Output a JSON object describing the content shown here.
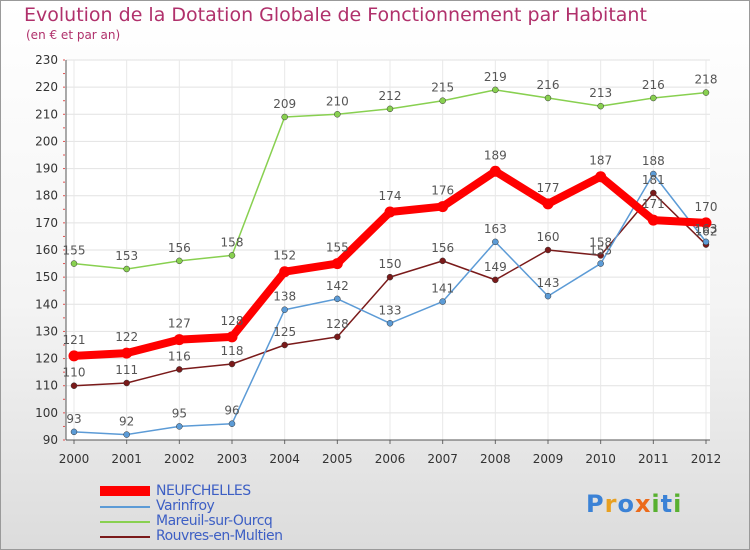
{
  "chart_data": {
    "type": "line",
    "title": "Evolution de la Dotation Globale de Fonctionnement par Habitant",
    "subtitle": "(en € et par an)",
    "xlabel": "",
    "ylabel": "",
    "x": [
      "2000",
      "2001",
      "2002",
      "2003",
      "2004",
      "2005",
      "2006",
      "2007",
      "2008",
      "2009",
      "2010",
      "2011",
      "2012"
    ],
    "ylim": [
      90,
      230
    ],
    "yticks": [
      "90",
      "100",
      "110",
      "120",
      "130",
      "140",
      "150",
      "160",
      "170",
      "180",
      "190",
      "200",
      "210",
      "220",
      "230"
    ],
    "grid": true,
    "legend_position": "bottom-left",
    "series": [
      {
        "name": "NEUFCHELLES",
        "color": "#ff0000",
        "values": [
          121,
          122,
          127,
          128,
          152,
          155,
          174,
          176,
          189,
          177,
          187,
          171,
          170
        ]
      },
      {
        "name": "Varinfroy",
        "color": "#5c9bd6",
        "values": [
          93,
          92,
          95,
          96,
          138,
          142,
          133,
          141,
          163,
          143,
          155,
          188,
          163
        ]
      },
      {
        "name": "Mareuil-sur-Ourcq",
        "color": "#88d050",
        "values": [
          155,
          153,
          156,
          158,
          209,
          210,
          212,
          215,
          219,
          216,
          213,
          216,
          218
        ]
      },
      {
        "name": "Rouvres-en-Multien",
        "color": "#7a1a1a",
        "values": [
          110,
          111,
          116,
          118,
          125,
          128,
          150,
          156,
          149,
          160,
          158,
          181,
          162
        ]
      }
    ]
  },
  "logo": {
    "text": "Proxiti",
    "letters": [
      {
        "char": "P",
        "color": "#3b82d6"
      },
      {
        "char": "r",
        "color": "#e8a020"
      },
      {
        "char": "o",
        "color": "#3b82d6"
      },
      {
        "char": "x",
        "color": "#ec6a1a"
      },
      {
        "char": "i",
        "color": "#58b030"
      },
      {
        "char": "t",
        "color": "#3b82d6"
      },
      {
        "char": "i",
        "color": "#58b030"
      }
    ]
  }
}
